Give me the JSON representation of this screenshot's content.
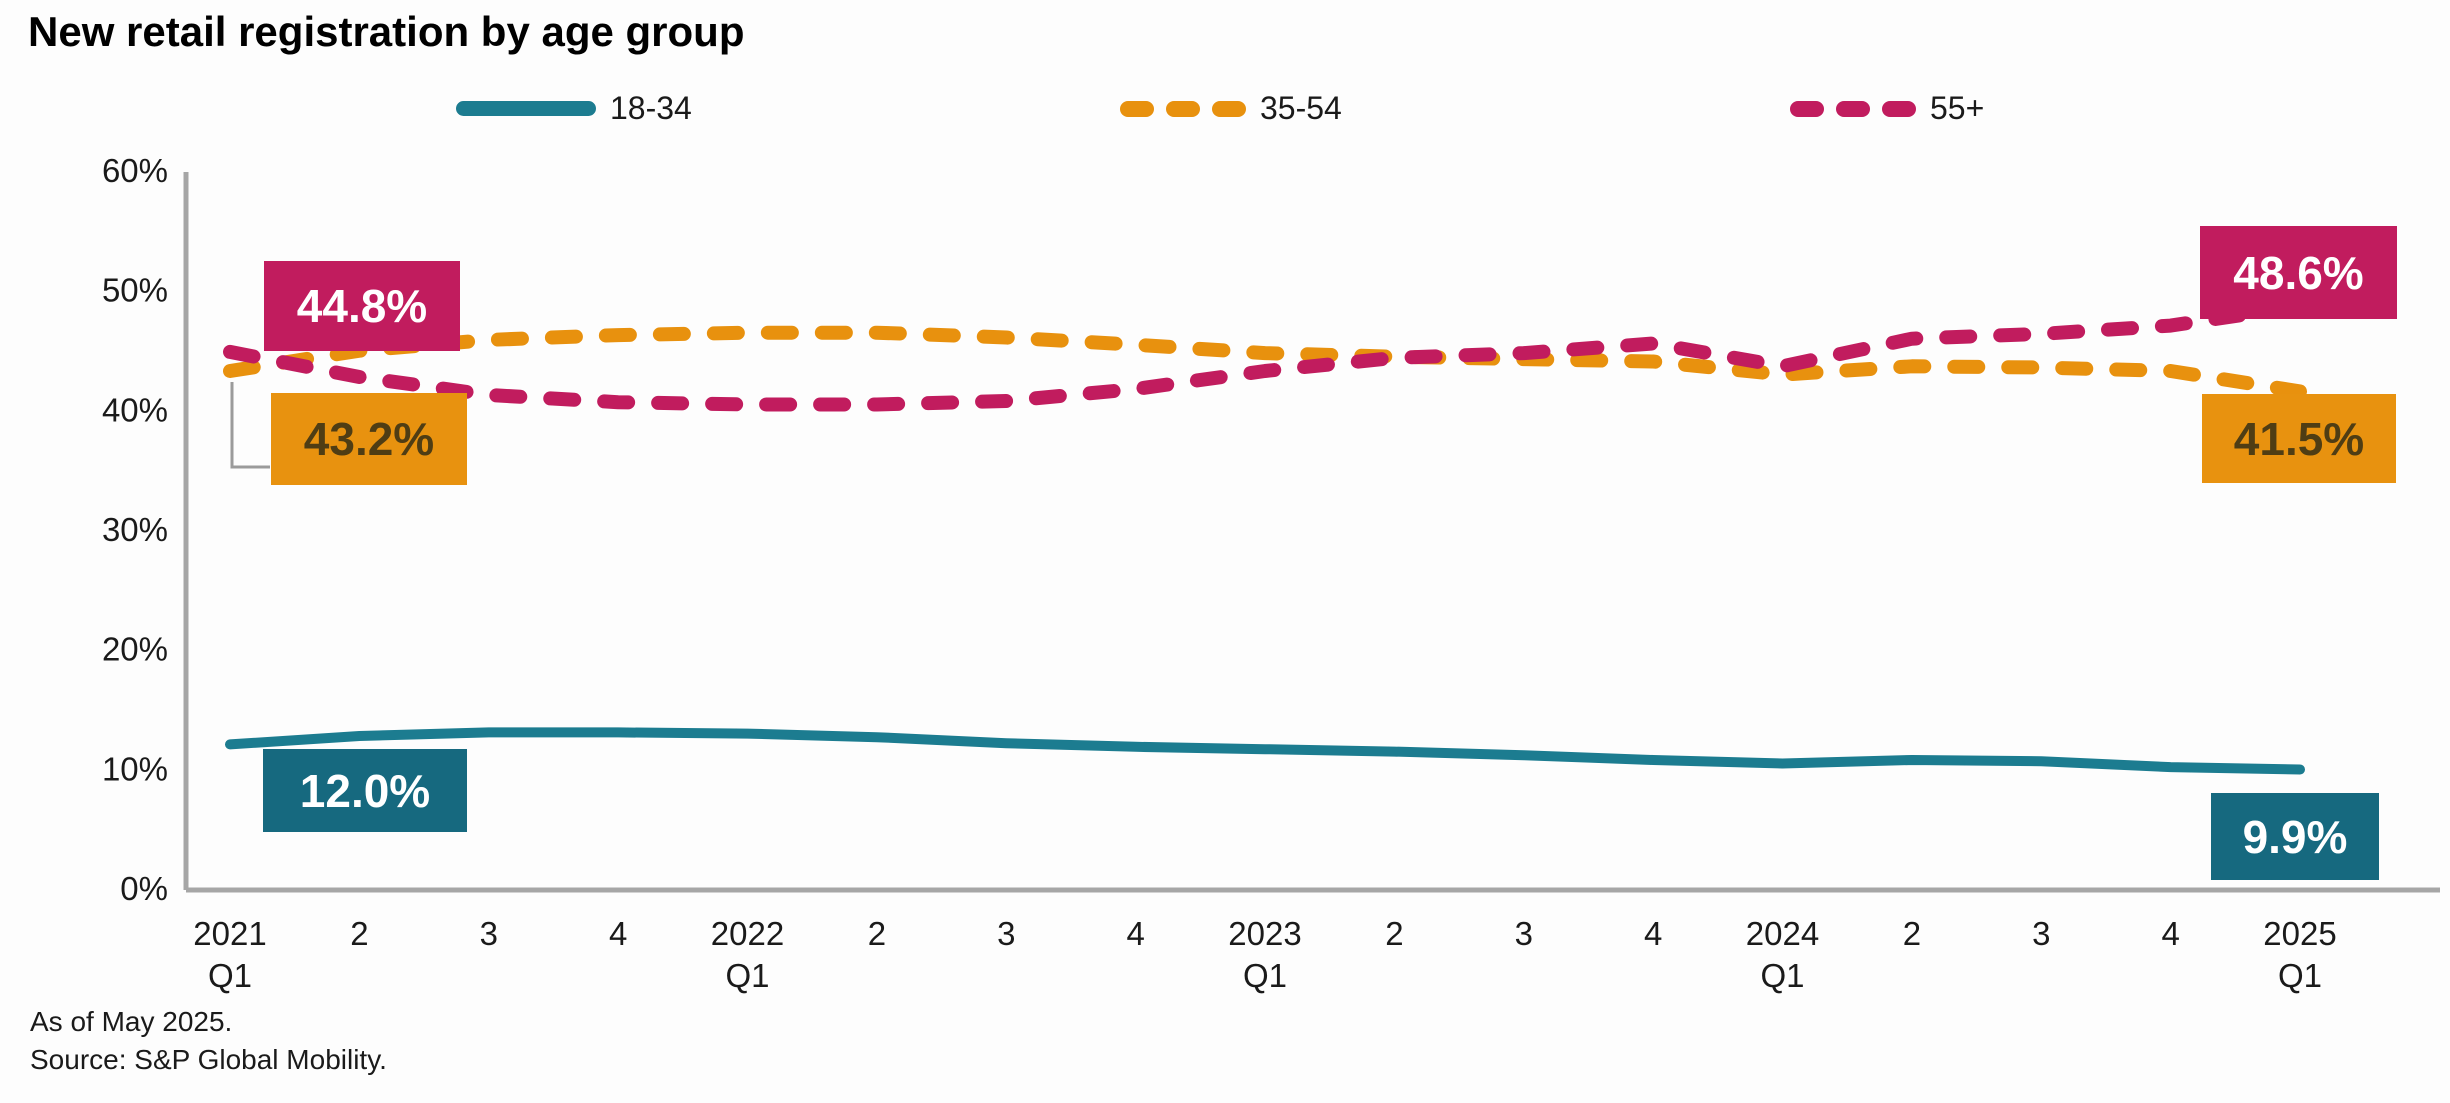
{
  "title": "New retail registration by age group",
  "chart_data": {
    "type": "line",
    "title": "New retail registration by age group",
    "categories": [
      "2021|Q1",
      "2",
      "3",
      "4",
      "2022|Q1",
      "2",
      "3",
      "4",
      "2023|Q1",
      "2",
      "3",
      "4",
      "2024|Q1",
      "2",
      "3",
      "4",
      "2025|Q1"
    ],
    "y_ticks": [
      "60%",
      "50%",
      "40%",
      "30%",
      "20%",
      "10%",
      "0%"
    ],
    "ylim": [
      0,
      60
    ],
    "grid": false,
    "legend_position": "top",
    "series": [
      {
        "name": "18-34",
        "color": "#1c7c90",
        "style": "solid",
        "values": [
          12.0,
          12.7,
          13.0,
          13.0,
          12.9,
          12.6,
          12.1,
          11.8,
          11.6,
          11.4,
          11.1,
          10.7,
          10.4,
          10.7,
          10.6,
          10.1,
          9.9
        ]
      },
      {
        "name": "35-54",
        "color": "#e8910e",
        "style": "dashed",
        "values": [
          43.2,
          44.9,
          45.8,
          46.2,
          46.4,
          46.4,
          46.0,
          45.4,
          44.7,
          44.4,
          44.2,
          44.0,
          42.9,
          43.6,
          43.5,
          43.2,
          41.5
        ]
      },
      {
        "name": "55+",
        "color": "#c11c5e",
        "style": "dashed",
        "values": [
          44.8,
          42.7,
          41.2,
          40.6,
          40.4,
          40.4,
          40.7,
          41.7,
          43.2,
          44.3,
          44.7,
          45.5,
          43.6,
          45.9,
          46.3,
          47.0,
          48.6
        ]
      }
    ],
    "annotations": {
      "s55_start": "44.8%",
      "s35_start": "43.2%",
      "s18_start": "12.0%",
      "s55_end": "48.6%",
      "s35_end": "41.5%",
      "s18_end": "9.9%"
    }
  },
  "colors": {
    "teal_line": "#1c7c90",
    "teal_box": "#16697f",
    "orange": "#e8910e",
    "magenta": "#c11c5e",
    "axis_gray": "#a6a6a6",
    "orange_box_text": "#4f3d14"
  },
  "footer": {
    "line1": "As of May 2025.",
    "line2": "Source: S&P Global Mobility."
  }
}
